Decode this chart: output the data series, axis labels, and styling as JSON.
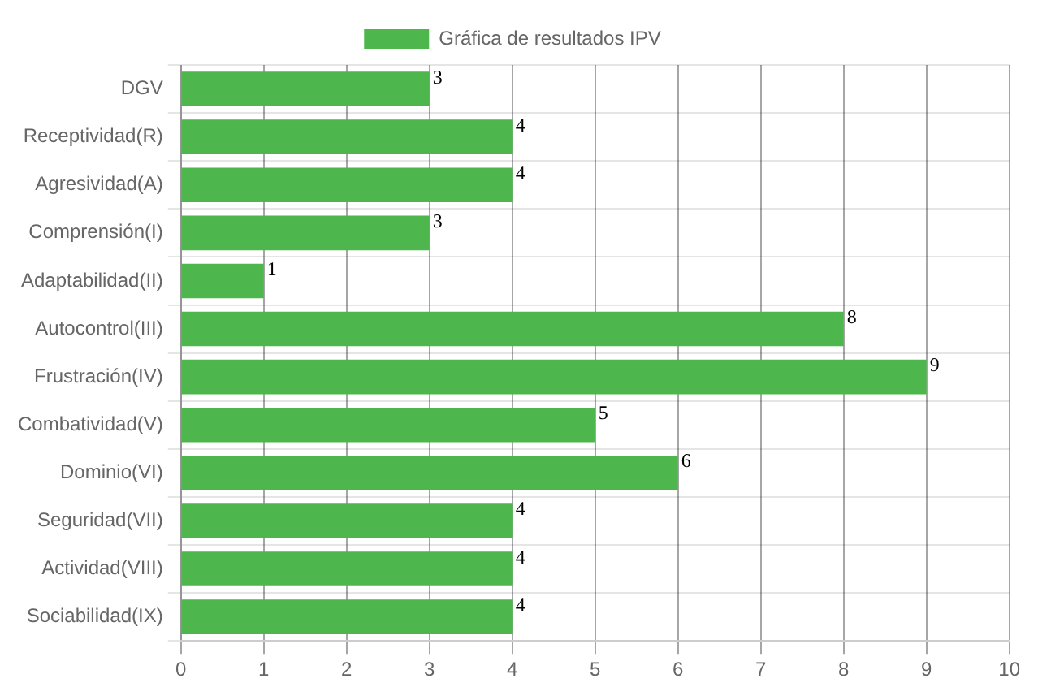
{
  "chart_data": {
    "type": "bar",
    "orientation": "horizontal",
    "categories": [
      "DGV",
      "Receptividad(R)",
      "Agresividad(A)",
      "Comprensión(I)",
      "Adaptabilidad(II)",
      "Autocontrol(III)",
      "Frustración(IV)",
      "Combatividad(V)",
      "Dominio(VI)",
      "Seguridad(VII)",
      "Actividad(VIII)",
      "Sociabilidad(IX)"
    ],
    "series": [
      {
        "name": "Gráfica de resultados IPV",
        "color": "#4db64d",
        "values": [
          3,
          4,
          4,
          3,
          1,
          8,
          9,
          5,
          6,
          4,
          4,
          4
        ]
      }
    ],
    "xlim": [
      0,
      10
    ],
    "xticks": [
      0,
      1,
      2,
      3,
      4,
      5,
      6,
      7,
      8,
      9,
      10
    ],
    "grid": true,
    "legend": "top",
    "data_labels": true
  }
}
